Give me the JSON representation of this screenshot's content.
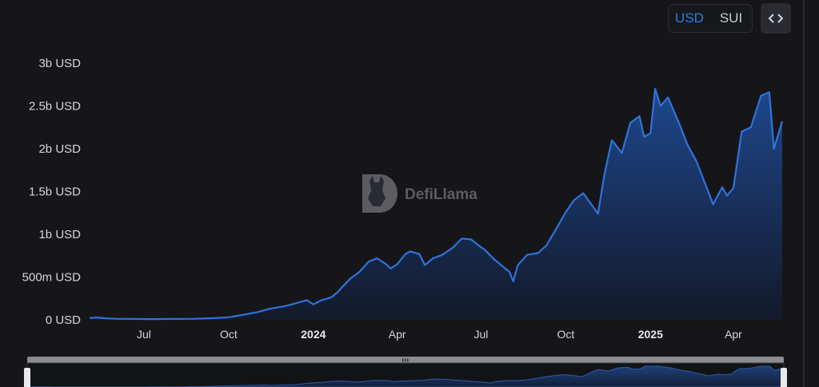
{
  "currency_toggle": {
    "options": [
      "USD",
      "SUI"
    ],
    "selected": "USD"
  },
  "embed_button": {
    "icon": "code-brackets-icon"
  },
  "watermark": {
    "text": "DefiLlama",
    "icon": "llama-logo-icon"
  },
  "colors": {
    "line": "#2f73dd",
    "area_top": "#1f4a94",
    "area_bottom": "#121a2c",
    "active": "#2f7be6"
  },
  "chart_data": {
    "type": "area",
    "title": "",
    "xlabel": "",
    "ylabel": "",
    "ylim": [
      0,
      3000000000
    ],
    "y_ticks": [
      {
        "value": 0,
        "label": "0 USD"
      },
      {
        "value": 500000000,
        "label": "500m USD"
      },
      {
        "value": 1000000000,
        "label": "1b USD"
      },
      {
        "value": 1500000000,
        "label": "1.5b USD"
      },
      {
        "value": 2000000000,
        "label": "2b USD"
      },
      {
        "value": 2500000000,
        "label": "2.5b USD"
      },
      {
        "value": 3000000000,
        "label": "3b USD"
      }
    ],
    "x_ticks": [
      {
        "date": "2023-07-01",
        "label": "Jul",
        "bold": false
      },
      {
        "date": "2023-10-01",
        "label": "Oct",
        "bold": false
      },
      {
        "date": "2024-01-01",
        "label": "2024",
        "bold": true
      },
      {
        "date": "2024-04-01",
        "label": "Apr",
        "bold": false
      },
      {
        "date": "2024-07-01",
        "label": "Jul",
        "bold": false
      },
      {
        "date": "2024-10-01",
        "label": "Oct",
        "bold": false
      },
      {
        "date": "2025-01-01",
        "label": "2025",
        "bold": true
      },
      {
        "date": "2025-04-01",
        "label": "Apr",
        "bold": false
      }
    ],
    "x_range": [
      "2023-05-03",
      "2025-05-24"
    ],
    "series": [
      {
        "points": [
          [
            "2023-05-03",
            20000000
          ],
          [
            "2023-05-10",
            28000000
          ],
          [
            "2023-05-20",
            18000000
          ],
          [
            "2023-06-01",
            12000000
          ],
          [
            "2023-06-20",
            10000000
          ],
          [
            "2023-07-10",
            8000000
          ],
          [
            "2023-08-01",
            10000000
          ],
          [
            "2023-08-25",
            12000000
          ],
          [
            "2023-09-15",
            20000000
          ],
          [
            "2023-10-01",
            30000000
          ],
          [
            "2023-10-15",
            55000000
          ],
          [
            "2023-11-01",
            90000000
          ],
          [
            "2023-11-15",
            130000000
          ],
          [
            "2023-12-01",
            160000000
          ],
          [
            "2023-12-15",
            200000000
          ],
          [
            "2023-12-25",
            230000000
          ],
          [
            "2024-01-01",
            180000000
          ],
          [
            "2024-01-10",
            230000000
          ],
          [
            "2024-01-20",
            260000000
          ],
          [
            "2024-01-27",
            320000000
          ],
          [
            "2024-02-01",
            380000000
          ],
          [
            "2024-02-10",
            480000000
          ],
          [
            "2024-02-20",
            560000000
          ],
          [
            "2024-03-01",
            680000000
          ],
          [
            "2024-03-10",
            720000000
          ],
          [
            "2024-03-20",
            650000000
          ],
          [
            "2024-03-25",
            600000000
          ],
          [
            "2024-04-01",
            650000000
          ],
          [
            "2024-04-10",
            770000000
          ],
          [
            "2024-04-15",
            800000000
          ],
          [
            "2024-04-25",
            770000000
          ],
          [
            "2024-05-01",
            640000000
          ],
          [
            "2024-05-10",
            720000000
          ],
          [
            "2024-05-20",
            760000000
          ],
          [
            "2024-06-01",
            850000000
          ],
          [
            "2024-06-10",
            950000000
          ],
          [
            "2024-06-20",
            940000000
          ],
          [
            "2024-07-01",
            850000000
          ],
          [
            "2024-07-05",
            820000000
          ],
          [
            "2024-07-15",
            710000000
          ],
          [
            "2024-07-25",
            620000000
          ],
          [
            "2024-08-01",
            560000000
          ],
          [
            "2024-08-05",
            450000000
          ],
          [
            "2024-08-10",
            640000000
          ],
          [
            "2024-08-20",
            760000000
          ],
          [
            "2024-09-01",
            780000000
          ],
          [
            "2024-09-10",
            870000000
          ],
          [
            "2024-09-20",
            1050000000
          ],
          [
            "2024-10-01",
            1260000000
          ],
          [
            "2024-10-10",
            1400000000
          ],
          [
            "2024-10-20",
            1480000000
          ],
          [
            "2024-11-01",
            1300000000
          ],
          [
            "2024-11-05",
            1240000000
          ],
          [
            "2024-11-12",
            1700000000
          ],
          [
            "2024-11-20",
            2100000000
          ],
          [
            "2024-12-01",
            1950000000
          ],
          [
            "2024-12-10",
            2300000000
          ],
          [
            "2024-12-20",
            2380000000
          ],
          [
            "2024-12-25",
            2140000000
          ],
          [
            "2025-01-01",
            2180000000
          ],
          [
            "2025-01-06",
            2700000000
          ],
          [
            "2025-01-12",
            2500000000
          ],
          [
            "2025-01-20",
            2600000000
          ],
          [
            "2025-02-01",
            2300000000
          ],
          [
            "2025-02-10",
            2050000000
          ],
          [
            "2025-02-20",
            1850000000
          ],
          [
            "2025-03-01",
            1600000000
          ],
          [
            "2025-03-10",
            1350000000
          ],
          [
            "2025-03-20",
            1550000000
          ],
          [
            "2025-03-25",
            1450000000
          ],
          [
            "2025-04-01",
            1540000000
          ],
          [
            "2025-04-10",
            2200000000
          ],
          [
            "2025-04-20",
            2250000000
          ],
          [
            "2025-05-01",
            2620000000
          ],
          [
            "2025-05-10",
            2660000000
          ],
          [
            "2025-05-15",
            2000000000
          ],
          [
            "2025-05-24",
            2320000000
          ]
        ]
      }
    ],
    "grid": false,
    "legend": "none"
  }
}
